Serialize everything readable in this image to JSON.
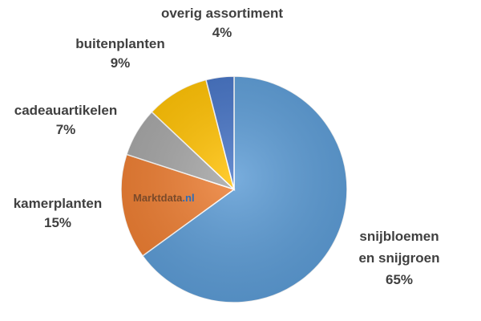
{
  "watermark": {
    "text_main": "Marktdata",
    "text_suffix": ".nl"
  },
  "chart_data": {
    "type": "pie",
    "title": "",
    "start_angle_deg": 0,
    "direction": "clockwise",
    "slices": [
      {
        "label_lines": [
          "snijbloemen",
          "en snijgroen"
        ],
        "percent_text": "65%",
        "value": 65,
        "color": "#5b9bd5"
      },
      {
        "label_lines": [
          "kamerplanten"
        ],
        "percent_text": "15%",
        "value": 15,
        "color": "#ed7d31"
      },
      {
        "label_lines": [
          "cadeauartikelen"
        ],
        "percent_text": "7%",
        "value": 7,
        "color": "#a5a5a5"
      },
      {
        "label_lines": [
          "buitenplanten"
        ],
        "percent_text": "9%",
        "value": 9,
        "color": "#ffc000"
      },
      {
        "label_lines": [
          "overig assortiment"
        ],
        "percent_text": "4%",
        "value": 4,
        "color": "#4472c4"
      }
    ]
  }
}
